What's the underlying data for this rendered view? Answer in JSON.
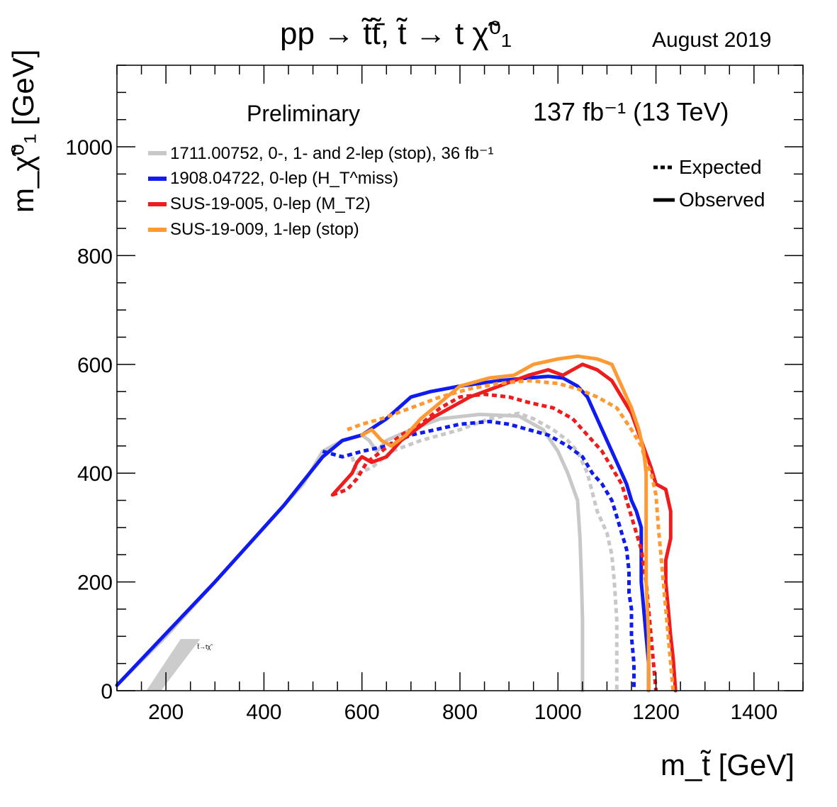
{
  "chart_data": {
    "type": "line",
    "title": "pp → t̃t̃̄,  t̃ → t χ̃⁰₁",
    "date_label": "August 2019",
    "status_label": "Preliminary",
    "lumi_label": "137 fb⁻¹ (13 TeV)",
    "xlabel": "m_t̃ [GeV]",
    "ylabel": "m_χ̃⁰₁ [GeV]",
    "xlim": [
      100,
      1500
    ],
    "ylim": [
      0,
      1150
    ],
    "x_ticks": [
      200,
      400,
      600,
      800,
      1000,
      1200,
      1400
    ],
    "y_ticks": [
      0,
      200,
      400,
      600,
      800,
      1000
    ],
    "grid": false,
    "legend_position": "top-left",
    "style_legend_position": "top-right",
    "style_legend": [
      {
        "label": "Expected",
        "style": "dotted"
      },
      {
        "label": "Observed",
        "style": "solid"
      }
    ],
    "series": [
      {
        "name": "1711.00752, 0-, 1- and 2-lep (stop), 36 fb⁻¹",
        "color": "#c8c8c8",
        "observed": [
          [
            100,
            10
          ],
          [
            200,
            100
          ],
          [
            300,
            200
          ],
          [
            400,
            300
          ],
          [
            480,
            380
          ],
          [
            520,
            440
          ],
          [
            560,
            460
          ],
          [
            600,
            470
          ],
          [
            615,
            460
          ],
          [
            630,
            440
          ],
          [
            650,
            460
          ],
          [
            700,
            480
          ],
          [
            760,
            500
          ],
          [
            840,
            508
          ],
          [
            920,
            505
          ],
          [
            970,
            480
          ],
          [
            1000,
            440
          ],
          [
            1020,
            400
          ],
          [
            1040,
            350
          ],
          [
            1045,
            280
          ],
          [
            1048,
            200
          ],
          [
            1050,
            130
          ],
          [
            1050,
            0
          ]
        ],
        "expected": [
          [
            580,
            430
          ],
          [
            590,
            400
          ],
          [
            620,
            410
          ],
          [
            660,
            440
          ],
          [
            720,
            460
          ],
          [
            800,
            480
          ],
          [
            860,
            500
          ],
          [
            920,
            510
          ],
          [
            950,
            500
          ],
          [
            990,
            480
          ],
          [
            1020,
            460
          ],
          [
            1040,
            440
          ],
          [
            1060,
            400
          ],
          [
            1080,
            330
          ],
          [
            1100,
            290
          ],
          [
            1110,
            250
          ],
          [
            1115,
            200
          ],
          [
            1120,
            130
          ],
          [
            1120,
            0
          ]
        ]
      },
      {
        "name": "1908.04722, 0-lep (H_T^miss)",
        "color": "#0f1bf0",
        "observed": [
          [
            100,
            10
          ],
          [
            300,
            200
          ],
          [
            440,
            340
          ],
          [
            520,
            430
          ],
          [
            560,
            460
          ],
          [
            600,
            470
          ],
          [
            650,
            500
          ],
          [
            700,
            540
          ],
          [
            740,
            550
          ],
          [
            800,
            560
          ],
          [
            880,
            570
          ],
          [
            940,
            575
          ],
          [
            980,
            578
          ],
          [
            1010,
            575
          ],
          [
            1040,
            560
          ],
          [
            1060,
            540
          ],
          [
            1080,
            500
          ],
          [
            1100,
            460
          ],
          [
            1120,
            420
          ],
          [
            1140,
            380
          ],
          [
            1150,
            350
          ],
          [
            1160,
            330
          ],
          [
            1170,
            300
          ],
          [
            1170,
            200
          ],
          [
            1175,
            150
          ],
          [
            1180,
            100
          ],
          [
            1185,
            50
          ],
          [
            1185,
            0
          ]
        ],
        "expected": [
          [
            520,
            440
          ],
          [
            560,
            430
          ],
          [
            600,
            440
          ],
          [
            650,
            450
          ],
          [
            700,
            470
          ],
          [
            750,
            480
          ],
          [
            800,
            490
          ],
          [
            860,
            495
          ],
          [
            900,
            490
          ],
          [
            940,
            480
          ],
          [
            980,
            470
          ],
          [
            1020,
            450
          ],
          [
            1050,
            430
          ],
          [
            1070,
            400
          ],
          [
            1090,
            380
          ],
          [
            1110,
            350
          ],
          [
            1120,
            320
          ],
          [
            1130,
            290
          ],
          [
            1140,
            260
          ],
          [
            1145,
            220
          ],
          [
            1145,
            180
          ],
          [
            1150,
            150
          ],
          [
            1150,
            100
          ],
          [
            1155,
            50
          ],
          [
            1155,
            0
          ]
        ]
      },
      {
        "name": "SUS-19-005, 0-lep (M_T2)",
        "color": "#ee1c1c",
        "observed": [
          [
            540,
            360
          ],
          [
            560,
            380
          ],
          [
            580,
            400
          ],
          [
            590,
            420
          ],
          [
            600,
            430
          ],
          [
            620,
            420
          ],
          [
            650,
            430
          ],
          [
            680,
            460
          ],
          [
            710,
            480
          ],
          [
            740,
            500
          ],
          [
            780,
            520
          ],
          [
            820,
            540
          ],
          [
            880,
            560
          ],
          [
            940,
            580
          ],
          [
            980,
            590
          ],
          [
            1010,
            580
          ],
          [
            1030,
            590
          ],
          [
            1050,
            600
          ],
          [
            1080,
            590
          ],
          [
            1110,
            570
          ],
          [
            1130,
            540
          ],
          [
            1150,
            510
          ],
          [
            1170,
            460
          ],
          [
            1190,
            410
          ],
          [
            1200,
            380
          ],
          [
            1220,
            370
          ],
          [
            1230,
            330
          ],
          [
            1230,
            280
          ],
          [
            1220,
            240
          ],
          [
            1220,
            200
          ],
          [
            1225,
            150
          ],
          [
            1230,
            100
          ],
          [
            1235,
            60
          ],
          [
            1240,
            0
          ]
        ],
        "expected": [
          [
            540,
            360
          ],
          [
            570,
            370
          ],
          [
            590,
            390
          ],
          [
            610,
            420
          ],
          [
            640,
            440
          ],
          [
            680,
            470
          ],
          [
            720,
            490
          ],
          [
            760,
            520
          ],
          [
            800,
            540
          ],
          [
            850,
            545
          ],
          [
            900,
            540
          ],
          [
            940,
            530
          ],
          [
            990,
            520
          ],
          [
            1030,
            500
          ],
          [
            1060,
            470
          ],
          [
            1090,
            440
          ],
          [
            1110,
            410
          ],
          [
            1130,
            380
          ],
          [
            1140,
            350
          ],
          [
            1150,
            320
          ],
          [
            1160,
            290
          ],
          [
            1170,
            260
          ],
          [
            1175,
            230
          ],
          [
            1180,
            200
          ],
          [
            1185,
            150
          ],
          [
            1190,
            100
          ],
          [
            1195,
            50
          ],
          [
            1200,
            0
          ]
        ]
      },
      {
        "name": "SUS-19-009, 1-lep (stop)",
        "color": "#ff9933",
        "observed": [
          [
            600,
            470
          ],
          [
            620,
            480
          ],
          [
            640,
            460
          ],
          [
            660,
            450
          ],
          [
            690,
            470
          ],
          [
            720,
            500
          ],
          [
            760,
            530
          ],
          [
            800,
            560
          ],
          [
            860,
            575
          ],
          [
            910,
            580
          ],
          [
            950,
            600
          ],
          [
            1000,
            610
          ],
          [
            1040,
            615
          ],
          [
            1080,
            610
          ],
          [
            1110,
            600
          ],
          [
            1130,
            560
          ],
          [
            1150,
            520
          ],
          [
            1165,
            480
          ],
          [
            1175,
            440
          ],
          [
            1180,
            400
          ],
          [
            1180,
            350
          ],
          [
            1180,
            300
          ],
          [
            1180,
            200
          ],
          [
            1185,
            100
          ],
          [
            1185,
            0
          ]
        ],
        "expected": [
          [
            570,
            480
          ],
          [
            600,
            490
          ],
          [
            640,
            500
          ],
          [
            700,
            520
          ],
          [
            760,
            540
          ],
          [
            820,
            555
          ],
          [
            880,
            565
          ],
          [
            940,
            570
          ],
          [
            1000,
            565
          ],
          [
            1040,
            555
          ],
          [
            1080,
            540
          ],
          [
            1120,
            520
          ],
          [
            1150,
            480
          ],
          [
            1170,
            450
          ],
          [
            1180,
            420
          ],
          [
            1190,
            400
          ],
          [
            1200,
            360
          ],
          [
            1205,
            300
          ],
          [
            1210,
            250
          ],
          [
            1215,
            200
          ],
          [
            1220,
            150
          ],
          [
            1225,
            100
          ],
          [
            1230,
            50
          ],
          [
            1235,
            0
          ]
        ]
      }
    ],
    "forbidden_band_label": "t̃→tχ̃",
    "forbidden_band": {
      "x_start": [
        160,
        190
      ],
      "x_end": [
        230,
        270
      ],
      "y_start": 0,
      "y_end": 95
    }
  }
}
